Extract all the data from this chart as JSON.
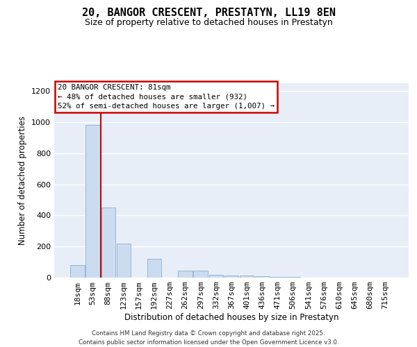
{
  "title": "20, BANGOR CRESCENT, PRESTATYN, LL19 8EN",
  "subtitle": "Size of property relative to detached houses in Prestatyn",
  "xlabel": "Distribution of detached houses by size in Prestatyn",
  "ylabel": "Number of detached properties",
  "categories": [
    "18sqm",
    "53sqm",
    "88sqm",
    "123sqm",
    "157sqm",
    "192sqm",
    "227sqm",
    "262sqm",
    "297sqm",
    "332sqm",
    "367sqm",
    "401sqm",
    "436sqm",
    "471sqm",
    "506sqm",
    "541sqm",
    "576sqm",
    "610sqm",
    "645sqm",
    "680sqm",
    "715sqm"
  ],
  "values": [
    80,
    980,
    450,
    220,
    0,
    120,
    0,
    45,
    45,
    20,
    15,
    12,
    8,
    5,
    3,
    2,
    1,
    0,
    0,
    0,
    0
  ],
  "bar_color": "#ccdcf0",
  "bar_edge_color": "#8aafd0",
  "vline_color": "#cc0000",
  "annotation_text": "20 BANGOR CRESCENT: 81sqm\n← 48% of detached houses are smaller (932)\n52% of semi-detached houses are larger (1,007) →",
  "ylim": [
    0,
    1250
  ],
  "yticks": [
    0,
    200,
    400,
    600,
    800,
    1000,
    1200
  ],
  "bg_color": "#e8eef8",
  "grid_color": "#ffffff",
  "footer_text": "Contains HM Land Registry data © Crown copyright and database right 2025.\nContains public sector information licensed under the Open Government Licence v3.0."
}
